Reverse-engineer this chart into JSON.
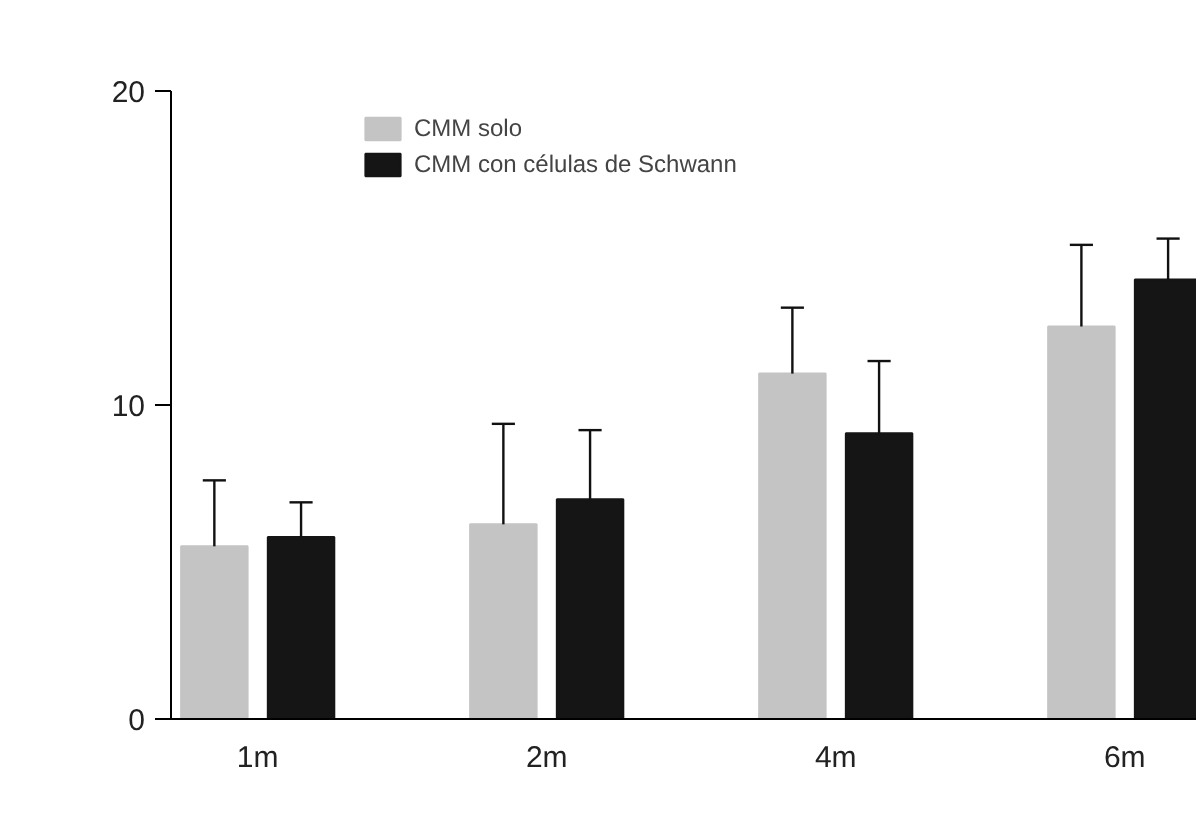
{
  "chart_data": {
    "type": "bar",
    "categories": [
      "1m",
      "2m",
      "4m",
      "6m"
    ],
    "series": [
      {
        "name": "CMM solo",
        "color": "#c4c4c4",
        "values": [
          5.5,
          6.2,
          11.0,
          12.5
        ],
        "errors": [
          [
            5.5,
            7.6
          ],
          [
            6.2,
            9.4
          ],
          [
            11.0,
            13.1
          ],
          [
            12.5,
            15.1
          ]
        ]
      },
      {
        "name": "CMM con células de Schwann",
        "color": "#151515",
        "values": [
          5.8,
          7.0,
          9.1,
          14.0
        ],
        "errors": [
          [
            5.8,
            6.9
          ],
          [
            7.0,
            9.2
          ],
          [
            9.1,
            11.4
          ],
          [
            14.0,
            15.3
          ]
        ]
      }
    ],
    "ylim": [
      0,
      20
    ],
    "yticks": [
      0,
      10,
      20
    ],
    "grid": false,
    "legend": "top left"
  }
}
